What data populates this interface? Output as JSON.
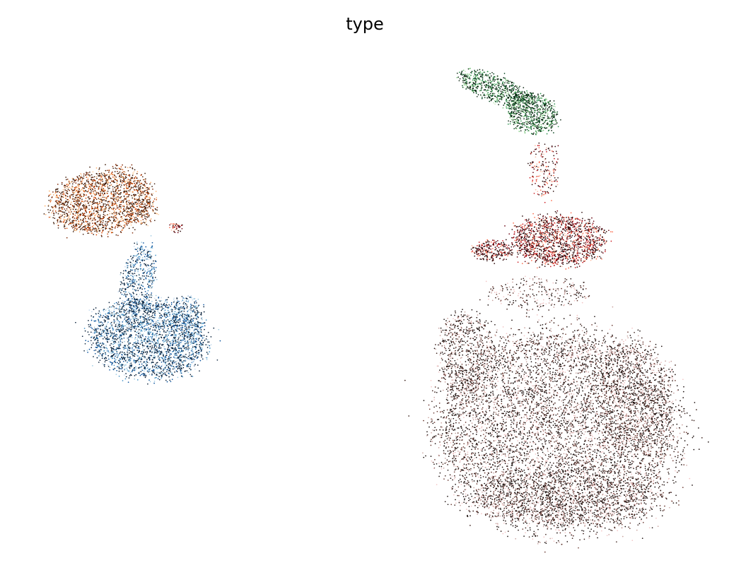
{
  "chart_data": {
    "type": "scatter",
    "title": "type",
    "xlabel": "",
    "ylabel": "",
    "axes_visible": false,
    "grid": false,
    "legend": "none",
    "clusters": [
      {
        "id": "orange-cluster",
        "palette": [
          "#fdd0a2",
          "#fdae6b",
          "#d94801",
          "#7f2704",
          "#3d1a08"
        ]
      },
      {
        "id": "blue-cluster",
        "palette": [
          "#c6dbef",
          "#9ecae1",
          "#4292c6",
          "#08519c",
          "#08203a"
        ]
      },
      {
        "id": "green-cluster",
        "palette": [
          "#c7e9c0",
          "#74c476",
          "#238b45",
          "#00441b",
          "#0a2410"
        ]
      },
      {
        "id": "red-cluster",
        "palette": [
          "#fcbba1",
          "#fb6a4a",
          "#cb181d",
          "#67000d",
          "#2a0a0a"
        ]
      },
      {
        "id": "brown-cluster",
        "palette": [
          "#f2c4c4",
          "#c9a39f",
          "#6b3a32",
          "#3a1f1a",
          "#1a0e0c"
        ]
      }
    ]
  }
}
